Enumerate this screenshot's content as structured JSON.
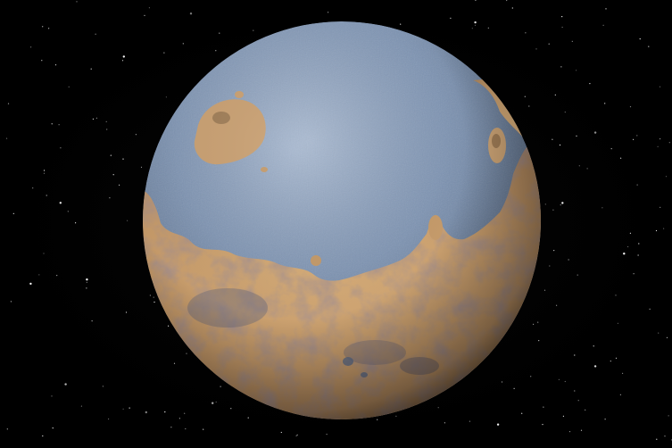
{
  "image": {
    "subject": "planet-with-ocean",
    "colors": {
      "space": "#000000",
      "ocean": "#6f87a8",
      "ocean_highlight": "#9bb0cc",
      "land": "#c49a6a",
      "land_shadow": "#7a5a3c",
      "crater": "#8a6a48",
      "star": "#ffffff"
    }
  }
}
